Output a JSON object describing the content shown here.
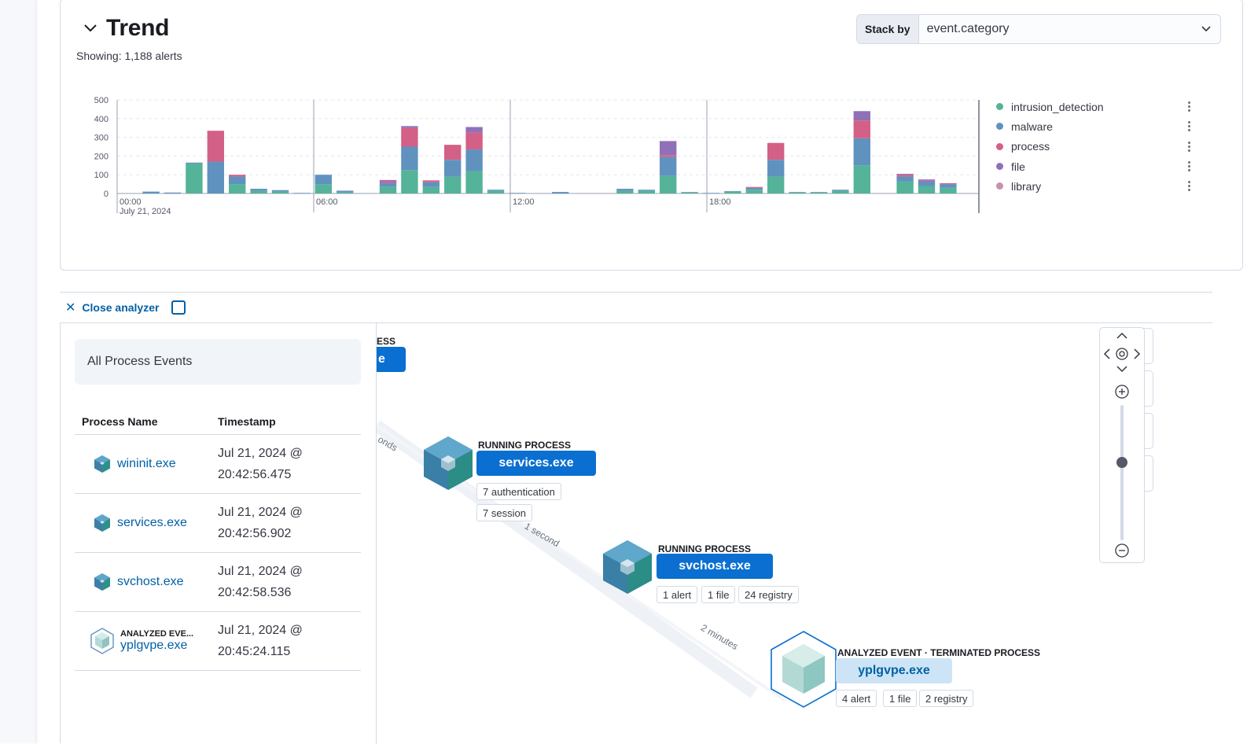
{
  "trend": {
    "title": "Trend",
    "showing": "Showing: 1,188 alerts",
    "stack_by_label": "Stack by",
    "stack_by_value": "event.category"
  },
  "colors": {
    "intrusion_detection": "#54b399",
    "malware": "#6092c0",
    "process": "#d36086",
    "file": "#9170b8",
    "library": "#ca8eae",
    "link": "#0061a6",
    "primary_button": "#0a6fd0"
  },
  "chart_data": {
    "type": "bar",
    "stacked": true,
    "ylim": [
      0,
      500
    ],
    "yticks": [
      "500",
      "400",
      "300",
      "200",
      "100",
      "0"
    ],
    "x_tick_labels": [
      "00:00",
      "06:00",
      "12:00",
      "18:00"
    ],
    "x_date_label": "July 21, 2024",
    "legend_position": "right",
    "series": [
      {
        "name": "intrusion_detection",
        "values": [
          0,
          0,
          0,
          160,
          0,
          50,
          15,
          10,
          0,
          50,
          5,
          0,
          35,
          125,
          35,
          90,
          120,
          15,
          0,
          0,
          0,
          0,
          0,
          15,
          15,
          95,
          5,
          0,
          10,
          20,
          90,
          5,
          5,
          15,
          150,
          0,
          65,
          40,
          30
        ]
      },
      {
        "name": "malware",
        "values": [
          0,
          10,
          5,
          5,
          170,
          40,
          10,
          8,
          3,
          50,
          10,
          0,
          22,
          125,
          25,
          90,
          115,
          5,
          3,
          0,
          8,
          0,
          0,
          10,
          5,
          100,
          3,
          3,
          3,
          10,
          90,
          3,
          3,
          5,
          145,
          0,
          25,
          25,
          20
        ]
      },
      {
        "name": "process",
        "values": [
          0,
          0,
          0,
          0,
          165,
          10,
          0,
          0,
          0,
          0,
          0,
          0,
          10,
          100,
          10,
          80,
          90,
          0,
          0,
          0,
          0,
          0,
          0,
          0,
          0,
          10,
          0,
          0,
          0,
          5,
          90,
          0,
          0,
          0,
          95,
          0,
          10,
          5,
          5
        ]
      },
      {
        "name": "file",
        "values": [
          0,
          0,
          0,
          0,
          0,
          0,
          0,
          0,
          0,
          0,
          0,
          0,
          5,
          10,
          0,
          0,
          30,
          0,
          0,
          0,
          0,
          0,
          0,
          0,
          0,
          75,
          0,
          0,
          0,
          0,
          0,
          0,
          0,
          0,
          50,
          0,
          5,
          5,
          0
        ]
      },
      {
        "name": "library",
        "values": [
          0,
          0,
          0,
          0,
          0,
          0,
          0,
          0,
          0,
          0,
          0,
          0,
          0,
          0,
          0,
          0,
          0,
          0,
          0,
          0,
          0,
          0,
          0,
          0,
          0,
          0,
          0,
          0,
          0,
          0,
          0,
          0,
          0,
          0,
          0,
          0,
          0,
          0,
          0
        ]
      }
    ]
  },
  "analyzer": {
    "close_label": "Close analyzer",
    "panel_title": "All Process Events",
    "col_process": "Process Name",
    "col_timestamp": "Timestamp",
    "rows": [
      {
        "name": "wininit.exe",
        "ts_date": "Jul 21, 2024 @",
        "ts_time": "20:42:56.475"
      },
      {
        "name": "services.exe",
        "ts_date": "Jul 21, 2024 @",
        "ts_time": "20:42:56.902"
      },
      {
        "name": "svchost.exe",
        "ts_date": "Jul 21, 2024 @",
        "ts_time": "20:42:58.536"
      },
      {
        "caption": "ANALYZED EVE...",
        "name": "yplgvpe.exe",
        "ts_date": "Jul 21, 2024 @",
        "ts_time": "20:45:24.115"
      }
    ]
  },
  "graph": {
    "partial_caption": "ESS",
    "partial_button": "e",
    "edge1": "onds",
    "edge2": "1 second",
    "edge3": "2 minutes",
    "node1": {
      "caption": "RUNNING PROCESS",
      "name": "services.exe",
      "pill1": "7 authentication",
      "pill2": "7 session"
    },
    "node2": {
      "caption": "RUNNING PROCESS",
      "name": "svchost.exe",
      "pill1": "1 alert",
      "pill2": "1 file",
      "pill3": "24 registry"
    },
    "node3": {
      "caption": "ANALYZED EVENT · TERMINATED PROCESS",
      "name": "yplgvpe.exe",
      "pill1": "4 alert",
      "pill2": "1 file",
      "pill3": "2 registry"
    }
  }
}
